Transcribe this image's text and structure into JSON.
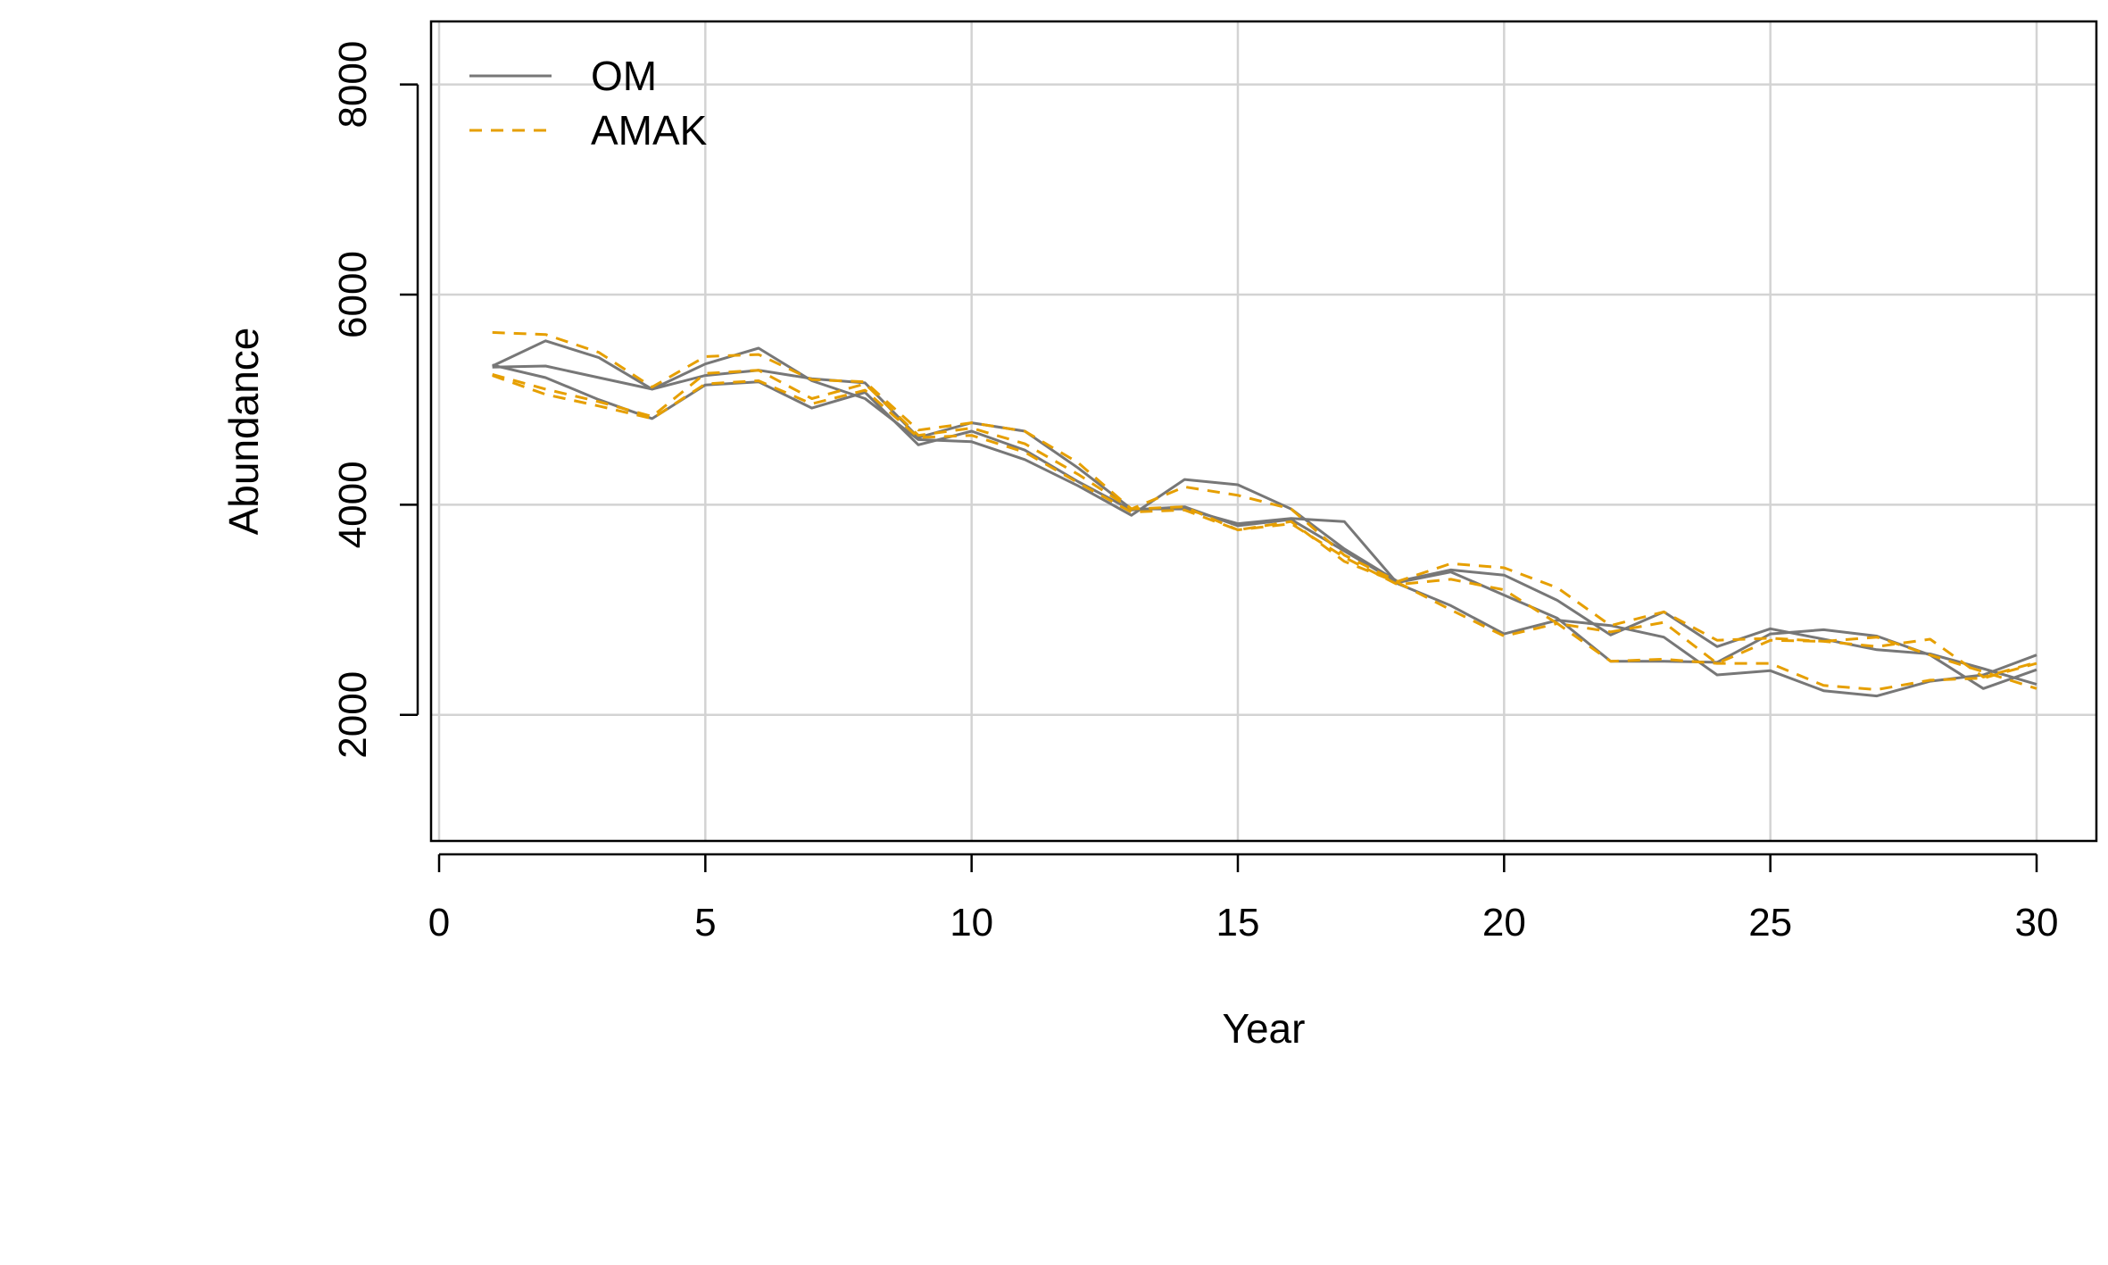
{
  "chart_data": {
    "type": "line",
    "title": "",
    "xlabel": "Year",
    "ylabel": "Abundance",
    "xlim": [
      0,
      30
    ],
    "ylim": [
      800,
      8600
    ],
    "xticks": [
      "0",
      "5",
      "10",
      "15",
      "20",
      "25",
      "30"
    ],
    "yticks": [
      "2000",
      "4000",
      "6000",
      "8000"
    ],
    "grid": true,
    "legend": {
      "position": "top-left",
      "entries": [
        {
          "label": "OM",
          "color": "#777777",
          "dash": "solid"
        },
        {
          "label": "AMAK",
          "color": "#E69F00",
          "dash": "dashed"
        }
      ]
    },
    "x": [
      1,
      2,
      3,
      4,
      5,
      6,
      7,
      8,
      9,
      10,
      11,
      12,
      13,
      14,
      15,
      16,
      17,
      18,
      19,
      20,
      21,
      22,
      23,
      24,
      25,
      26,
      27,
      28,
      29,
      30
    ],
    "series": [
      {
        "group": "OM",
        "values": [
          5320,
          5560,
          5400,
          5100,
          5230,
          5280,
          5200,
          5160,
          4640,
          4780,
          4700,
          4350,
          3960,
          3960,
          3820,
          3870,
          3840,
          3250,
          3040,
          2770,
          2900,
          2850,
          2740,
          2380,
          2420,
          2230,
          2180,
          2320,
          2380,
          2570
        ]
      },
      {
        "group": "OM",
        "values": [
          5310,
          5320,
          5210,
          5100,
          5340,
          5490,
          5180,
          5010,
          4620,
          4600,
          4430,
          4180,
          3900,
          4240,
          4190,
          3960,
          3580,
          3270,
          3380,
          3330,
          3090,
          2760,
          2980,
          2650,
          2820,
          2720,
          2620,
          2580,
          2440,
          2290
        ]
      },
      {
        "group": "OM",
        "values": [
          5330,
          5210,
          5000,
          4820,
          5140,
          5170,
          4920,
          5070,
          4570,
          4700,
          4520,
          4220,
          3950,
          3980,
          3800,
          3860,
          3560,
          3260,
          3360,
          3140,
          2920,
          2510,
          2510,
          2500,
          2770,
          2810,
          2750,
          2570,
          2250,
          2430
        ]
      },
      {
        "group": "AMAK",
        "values": [
          5640,
          5620,
          5450,
          5120,
          5410,
          5430,
          5190,
          5170,
          4710,
          4780,
          4700,
          4400,
          3960,
          4170,
          4090,
          3960,
          3520,
          3270,
          3440,
          3400,
          3210,
          2850,
          2980,
          2710,
          2730,
          2700,
          2650,
          2720,
          2360,
          2500
        ]
      },
      {
        "group": "AMAK",
        "values": [
          5240,
          5100,
          4980,
          4840,
          5250,
          5280,
          5010,
          5150,
          4660,
          4730,
          4580,
          4290,
          3960,
          3980,
          3760,
          3820,
          3500,
          3240,
          3290,
          3190,
          2870,
          2790,
          2880,
          2490,
          2710,
          2700,
          2740,
          2570,
          2410,
          2250
        ]
      },
      {
        "group": "AMAK",
        "values": [
          5230,
          5050,
          4940,
          4820,
          5150,
          5180,
          4960,
          5090,
          4640,
          4660,
          4500,
          4210,
          3930,
          3950,
          3760,
          3840,
          3460,
          3260,
          3000,
          2750,
          2870,
          2510,
          2530,
          2490,
          2490,
          2280,
          2240,
          2330,
          2350,
          2490
        ]
      }
    ]
  }
}
